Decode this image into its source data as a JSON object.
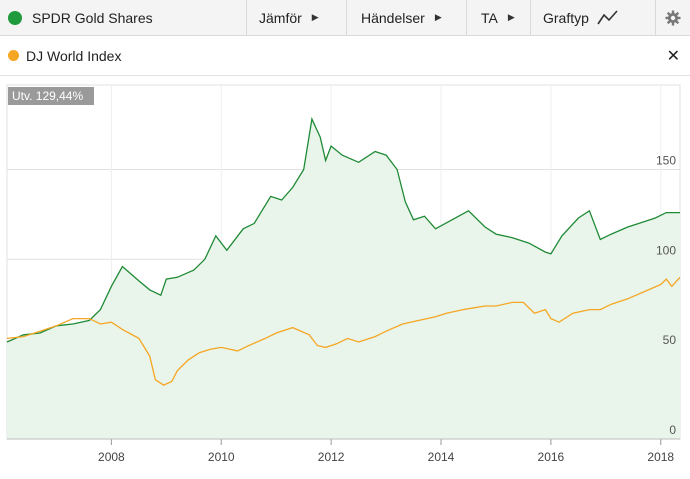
{
  "toolbar": {
    "instrument": "SPDR Gold Shares",
    "compare": "Jämför",
    "events": "Händelser",
    "ta": "TA",
    "chart_type": "Graftyp"
  },
  "legend": {
    "series_label": "DJ World Index"
  },
  "badge": {
    "text": "Utv. 129,44%"
  },
  "colors": {
    "gold": "#1f8a36",
    "gold_fill": "#e9f5ea",
    "world": "#f5a623",
    "grid": "#e0e0e0"
  },
  "icons": [
    "chevron-right-icon",
    "line-chart-icon",
    "gear-icon",
    "close-icon",
    "series-dot"
  ],
  "chart_data": {
    "type": "area",
    "title": "",
    "xlabel": "",
    "ylabel": "",
    "x_ticks": [
      "2008",
      "2010",
      "2012",
      "2014",
      "2016",
      "2018"
    ],
    "y_ticks": [
      "0",
      "50",
      "100",
      "150"
    ],
    "xlim": [
      2006.1,
      2018.35
    ],
    "ylim": [
      0,
      197
    ],
    "grid": true,
    "series": [
      {
        "name": "SPDR Gold Shares",
        "x": [
          2006.1,
          2006.4,
          2006.7,
          2007.0,
          2007.3,
          2007.6,
          2007.8,
          2008.0,
          2008.2,
          2008.5,
          2008.7,
          2008.9,
          2009.0,
          2009.2,
          2009.5,
          2009.7,
          2009.9,
          2010.1,
          2010.4,
          2010.6,
          2010.9,
          2011.1,
          2011.3,
          2011.5,
          2011.65,
          2011.8,
          2011.9,
          2012.0,
          2012.2,
          2012.5,
          2012.8,
          2013.0,
          2013.2,
          2013.35,
          2013.5,
          2013.7,
          2013.9,
          2014.2,
          2014.5,
          2014.8,
          2015.0,
          2015.3,
          2015.6,
          2015.9,
          2016.0,
          2016.2,
          2016.5,
          2016.7,
          2016.9,
          2017.1,
          2017.4,
          2017.7,
          2017.9,
          2018.1,
          2018.35
        ],
        "values": [
          54,
          58,
          59,
          63,
          64,
          66,
          72,
          85,
          96,
          88,
          83,
          80,
          89,
          90,
          94,
          100,
          113,
          105,
          117,
          120,
          135,
          133,
          140,
          150,
          178,
          168,
          155,
          163,
          158,
          154,
          160,
          158,
          150,
          132,
          122,
          124,
          117,
          122,
          127,
          118,
          114,
          112,
          109,
          104,
          103,
          113,
          123,
          127,
          111,
          114,
          118,
          121,
          123,
          126,
          126
        ]
      },
      {
        "name": "DJ World Index",
        "x": [
          2006.1,
          2006.4,
          2006.7,
          2007.0,
          2007.3,
          2007.6,
          2007.8,
          2008.0,
          2008.2,
          2008.5,
          2008.7,
          2008.8,
          2008.95,
          2009.1,
          2009.2,
          2009.4,
          2009.6,
          2009.8,
          2010.0,
          2010.3,
          2010.5,
          2010.8,
          2011.0,
          2011.3,
          2011.6,
          2011.75,
          2011.9,
          2012.1,
          2012.3,
          2012.5,
          2012.8,
          2013.0,
          2013.3,
          2013.6,
          2013.9,
          2014.1,
          2014.4,
          2014.6,
          2014.8,
          2015.0,
          2015.3,
          2015.5,
          2015.7,
          2015.9,
          2016.0,
          2016.15,
          2016.4,
          2016.7,
          2016.9,
          2017.1,
          2017.4,
          2017.7,
          2018.0,
          2018.1,
          2018.2,
          2018.35
        ],
        "values": [
          56,
          57,
          60,
          63,
          67,
          67,
          64,
          65,
          61,
          56,
          46,
          33,
          30,
          32,
          38,
          44,
          48,
          50,
          51,
          49,
          52,
          56,
          59,
          62,
          58,
          52,
          51,
          53,
          56,
          54,
          57,
          60,
          64,
          66,
          68,
          70,
          72,
          73,
          74,
          74,
          76,
          76,
          70,
          72,
          67,
          65,
          70,
          72,
          72,
          75,
          78,
          82,
          86,
          89,
          85,
          90
        ]
      }
    ]
  }
}
